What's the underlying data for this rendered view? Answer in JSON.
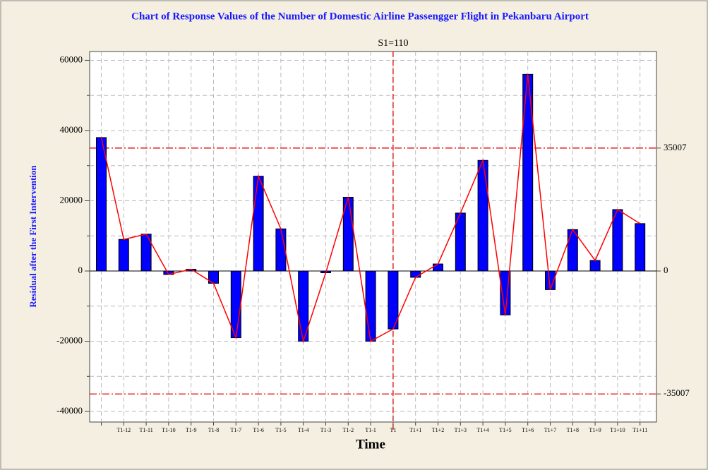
{
  "chart_data": {
    "type": "bar",
    "title": "Chart of Response Values of the Number of  Domestic Airline Passengger Flight in Pekanbaru Airport",
    "ylabel": "Residual  after the First Intervention",
    "xlabel": "Time",
    "categories": [
      null,
      "T1-12",
      "T1-11",
      "T1-10",
      "T1-9",
      "T1-8",
      "T1-7",
      "T1-6",
      "T1-5",
      "T1-4",
      "T1-3",
      "T1-2",
      "T1-1",
      "T1",
      "T1+1",
      "T1+2",
      "T1+3",
      "T1+4",
      "T1+5",
      "T1+6",
      "T1+7",
      "T1+8",
      "T1+9",
      "T1+10",
      "T1+11"
    ],
    "values": [
      38000,
      9000,
      10500,
      -1000,
      500,
      -3500,
      -19000,
      27000,
      12000,
      -20000,
      -500,
      21000,
      -20000,
      -16500,
      -1800,
      2000,
      16500,
      31500,
      -12500,
      56000,
      -5300,
      11800,
      3000,
      17500,
      13500
    ],
    "color": "#0000ff",
    "line_color": "#ff0000",
    "ylim": [
      -43000,
      62500
    ],
    "yticks": [
      -40000,
      -20000,
      0,
      20000,
      40000,
      60000
    ],
    "minor_yticks": [
      -30000,
      -10000,
      10000,
      30000,
      50000
    ],
    "y2lim": [
      -43000,
      62500
    ],
    "y2ticks": [
      -35007,
      0,
      35007
    ],
    "control_limits": [
      35007,
      -35007
    ],
    "intervention": {
      "label": "S1=110",
      "at": "T1"
    },
    "grid": true
  }
}
